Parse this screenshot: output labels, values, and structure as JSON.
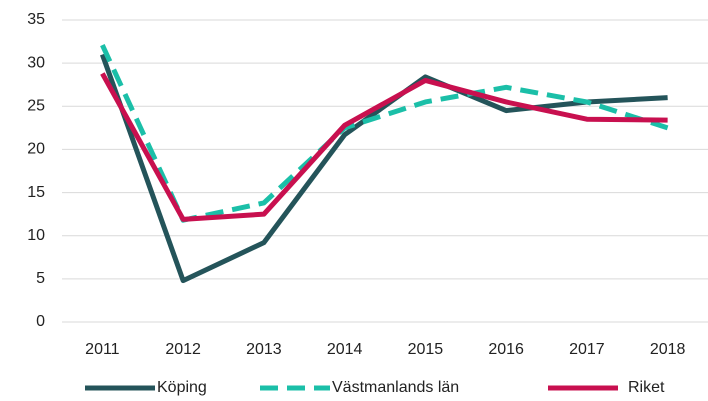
{
  "chart_data": {
    "type": "line",
    "categories": [
      "2011",
      "2012",
      "2013",
      "2014",
      "2015",
      "2016",
      "2017",
      "2018"
    ],
    "series": [
      {
        "name": "Köping",
        "color": "#24545a",
        "dash": false,
        "values": [
          31,
          4.8,
          9.2,
          21.7,
          28.4,
          24.5,
          25.5,
          26
        ]
      },
      {
        "name": "Västmanlands län",
        "color": "#1bbfa8",
        "dash": true,
        "values": [
          32.1,
          11.8,
          13.8,
          22.5,
          25.5,
          27.2,
          25.5,
          22.5
        ]
      },
      {
        "name": "Riket",
        "color": "#c8104f",
        "dash": false,
        "values": [
          28.8,
          11.9,
          12.5,
          22.8,
          28,
          25.5,
          23.5,
          23.4
        ]
      }
    ],
    "ylim": [
      0,
      35
    ],
    "yticks": [
      0,
      5,
      10,
      15,
      20,
      25,
      30,
      35
    ],
    "grid": true,
    "legend": "bottom"
  }
}
